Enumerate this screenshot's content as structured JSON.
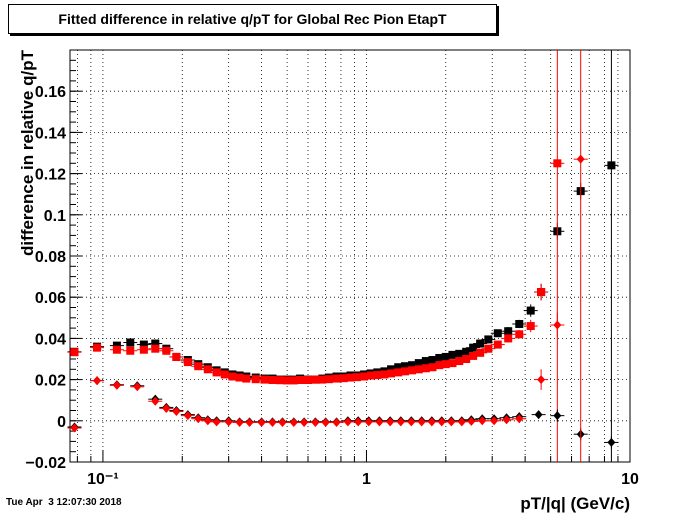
{
  "chart_data": {
    "type": "scatter",
    "title": "Fitted difference in relative q/pT for Global Rec Pion EtapT",
    "xlabel": "pT/|q| (GeV/c)",
    "ylabel": "difference in relative q/pT",
    "xscale": "log",
    "xlim": [
      0.075,
      10
    ],
    "ylim": [
      -0.02,
      0.18
    ],
    "grid": true,
    "x_ticks": [
      {
        "label": "10⁻¹",
        "value": 0.1
      },
      {
        "label": "1",
        "value": 1
      },
      {
        "label": "10",
        "value": 10
      }
    ],
    "y_ticks": [
      {
        "label": "−0.02",
        "value": -0.02
      },
      {
        "label": "0",
        "value": 0
      },
      {
        "label": "0.02",
        "value": 0.02
      },
      {
        "label": "0.04",
        "value": 0.04
      },
      {
        "label": "0.06",
        "value": 0.06
      },
      {
        "label": "0.08",
        "value": 0.08
      },
      {
        "label": "0.1",
        "value": 0.1
      },
      {
        "label": "0.12",
        "value": 0.12
      },
      {
        "label": "0.14",
        "value": 0.14
      },
      {
        "label": "0.16",
        "value": 0.16
      }
    ],
    "series": [
      {
        "marker": "square",
        "color": "#000000",
        "x": [
          0.078,
          0.095,
          0.113,
          0.127,
          0.143,
          0.158,
          0.174,
          0.19,
          0.21,
          0.23,
          0.25,
          0.27,
          0.29,
          0.31,
          0.33,
          0.35,
          0.38,
          0.41,
          0.44,
          0.47,
          0.5,
          0.53,
          0.56,
          0.6,
          0.64,
          0.68,
          0.72,
          0.77,
          0.82,
          0.87,
          0.92,
          0.98,
          1.04,
          1.1,
          1.17,
          1.24,
          1.32,
          1.4,
          1.49,
          1.58,
          1.68,
          1.78,
          1.89,
          2.0,
          2.12,
          2.25,
          2.39,
          2.54,
          2.7,
          2.9,
          3.15,
          3.45,
          3.8,
          4.2,
          4.6,
          5.3,
          6.5,
          8.5
        ],
        "y": [
          0.0335,
          0.036,
          0.0365,
          0.038,
          0.037,
          0.0375,
          0.035,
          0.031,
          0.0295,
          0.0275,
          0.026,
          0.0245,
          0.0235,
          0.0225,
          0.022,
          0.0215,
          0.021,
          0.0205,
          0.0205,
          0.02,
          0.02,
          0.02,
          0.0205,
          0.02,
          0.02,
          0.0205,
          0.021,
          0.0215,
          0.0215,
          0.022,
          0.022,
          0.0225,
          0.023,
          0.0235,
          0.024,
          0.025,
          0.026,
          0.0265,
          0.027,
          0.028,
          0.029,
          0.0295,
          0.0305,
          0.031,
          0.032,
          0.0325,
          0.0335,
          0.0355,
          0.0375,
          0.0395,
          0.0425,
          0.0435,
          0.047,
          0.0535,
          0.0625,
          0.092,
          0.1115,
          0.124
        ],
        "yerr": [
          0.001,
          0.001,
          0.001,
          0.001,
          0.001,
          0.001,
          0.0008,
          0.0006,
          0.0006,
          0.0005,
          0.0005,
          0.0005,
          0.0005,
          0.0005,
          0.0005,
          0.0005,
          0.0005,
          0.0005,
          0.0005,
          0.0005,
          0.0005,
          0.0005,
          0.0005,
          0.0005,
          0.0005,
          0.0005,
          0.0005,
          0.0005,
          0.0005,
          0.0005,
          0.0005,
          0.0005,
          0.0005,
          0.0006,
          0.0006,
          0.0006,
          0.0006,
          0.0006,
          0.0007,
          0.0007,
          0.0007,
          0.0008,
          0.0008,
          0.0008,
          0.0009,
          0.001,
          0.001,
          0.001,
          0.0012,
          0.0013,
          0.0015,
          0.002,
          0.002,
          0.003,
          0.004,
          0.004,
          0.004,
          0.004
        ]
      },
      {
        "marker": "square",
        "color": "#ff0000",
        "x": [
          0.078,
          0.095,
          0.113,
          0.127,
          0.143,
          0.158,
          0.174,
          0.19,
          0.21,
          0.23,
          0.25,
          0.27,
          0.29,
          0.31,
          0.33,
          0.35,
          0.38,
          0.41,
          0.44,
          0.47,
          0.5,
          0.53,
          0.56,
          0.6,
          0.64,
          0.68,
          0.72,
          0.77,
          0.82,
          0.87,
          0.92,
          0.98,
          1.04,
          1.1,
          1.17,
          1.24,
          1.32,
          1.4,
          1.49,
          1.58,
          1.68,
          1.78,
          1.89,
          2.0,
          2.12,
          2.25,
          2.39,
          2.54,
          2.7,
          2.9,
          3.15,
          3.45,
          3.8,
          4.2,
          4.6,
          5.3
        ],
        "y": [
          0.0333,
          0.0355,
          0.0345,
          0.034,
          0.0345,
          0.035,
          0.034,
          0.031,
          0.0285,
          0.0265,
          0.025,
          0.0235,
          0.0225,
          0.0215,
          0.021,
          0.0205,
          0.0202,
          0.02,
          0.0198,
          0.0197,
          0.0196,
          0.0196,
          0.0198,
          0.0198,
          0.02,
          0.02,
          0.0202,
          0.0205,
          0.0207,
          0.021,
          0.0212,
          0.0215,
          0.022,
          0.0222,
          0.0225,
          0.023,
          0.0235,
          0.024,
          0.0245,
          0.025,
          0.0255,
          0.026,
          0.027,
          0.0275,
          0.028,
          0.029,
          0.03,
          0.0315,
          0.033,
          0.035,
          0.037,
          0.04,
          0.042,
          0.046,
          0.0625,
          0.125
        ],
        "yerr": [
          0.001,
          0.001,
          0.001,
          0.001,
          0.001,
          0.001,
          0.0008,
          0.0006,
          0.0006,
          0.0005,
          0.0005,
          0.0005,
          0.0005,
          0.0005,
          0.0005,
          0.0005,
          0.0005,
          0.0005,
          0.0005,
          0.0005,
          0.0005,
          0.0005,
          0.0005,
          0.0005,
          0.0005,
          0.0005,
          0.0005,
          0.0005,
          0.0005,
          0.0005,
          0.0005,
          0.0005,
          0.0005,
          0.0006,
          0.0006,
          0.0006,
          0.0006,
          0.0006,
          0.0007,
          0.0007,
          0.0007,
          0.0008,
          0.0008,
          0.0008,
          0.0009,
          0.001,
          0.001,
          0.001,
          0.0012,
          0.0013,
          0.0015,
          0.002,
          0.002,
          0.003,
          0.004,
          0.006
        ]
      },
      {
        "marker": "diamond",
        "color": "#000000",
        "x": [
          0.078,
          0.095,
          0.113,
          0.135,
          0.158,
          0.174,
          0.19,
          0.21,
          0.23,
          0.25,
          0.27,
          0.3,
          0.33,
          0.36,
          0.4,
          0.44,
          0.48,
          0.53,
          0.58,
          0.64,
          0.7,
          0.77,
          0.85,
          0.93,
          1.02,
          1.12,
          1.23,
          1.35,
          1.48,
          1.62,
          1.77,
          1.93,
          2.1,
          2.3,
          2.5,
          2.75,
          3.05,
          3.4,
          3.8,
          4.5,
          5.3,
          6.5,
          8.5
        ],
        "y": [
          -0.003,
          0.0195,
          0.0175,
          0.017,
          0.0105,
          0.0065,
          0.005,
          0.003,
          0.0015,
          0.0005,
          0.0,
          0.0,
          -0.0005,
          -0.0005,
          -0.0005,
          -0.0005,
          -0.0005,
          -0.0005,
          -0.0005,
          -0.0005,
          -0.0005,
          -0.0005,
          0.0,
          0.0,
          0.0,
          0.0,
          0.0,
          0.0,
          0.0,
          0.0,
          0.0,
          0.0,
          0.0,
          0.0,
          0.0005,
          0.001,
          0.001,
          0.0015,
          0.002,
          0.003,
          0.0025,
          -0.0065,
          -0.0105
        ],
        "yerr": [
          0.001,
          0.001,
          0.001,
          0.001,
          0.0008,
          0.0006,
          0.0005,
          0.0005,
          0.0005,
          0.0005,
          0.0005,
          0.0005,
          0.0005,
          0.0005,
          0.0005,
          0.0005,
          0.0005,
          0.0005,
          0.0005,
          0.0005,
          0.0005,
          0.0005,
          0.0005,
          0.0005,
          0.0005,
          0.0005,
          0.0005,
          0.0005,
          0.0005,
          0.0005,
          0.0005,
          0.0005,
          0.0006,
          0.0006,
          0.0007,
          0.0008,
          0.001,
          0.0015,
          0.002,
          0.002,
          0.003,
          0.003,
          0.003
        ]
      },
      {
        "marker": "diamond",
        "color": "#ff0000",
        "x": [
          0.078,
          0.095,
          0.113,
          0.135,
          0.158,
          0.174,
          0.19,
          0.21,
          0.23,
          0.25,
          0.27,
          0.3,
          0.33,
          0.36,
          0.4,
          0.44,
          0.48,
          0.53,
          0.58,
          0.64,
          0.7,
          0.77,
          0.85,
          0.93,
          1.02,
          1.12,
          1.23,
          1.35,
          1.48,
          1.62,
          1.77,
          1.93,
          2.1,
          2.3,
          2.5,
          2.75,
          3.05,
          3.4,
          3.8,
          4.6,
          5.3,
          6.5
        ],
        "y": [
          -0.0035,
          0.0195,
          0.0172,
          0.0165,
          0.0095,
          0.006,
          0.0045,
          0.0025,
          0.001,
          0.0,
          -0.0005,
          -0.0005,
          -0.0008,
          -0.0008,
          -0.0008,
          -0.0008,
          -0.0008,
          -0.0008,
          -0.0008,
          -0.0008,
          -0.0008,
          -0.0008,
          -0.0005,
          -0.0005,
          -0.0005,
          -0.0005,
          -0.0005,
          -0.0005,
          -0.0005,
          -0.0005,
          -0.0005,
          -0.0005,
          -0.0005,
          -0.0005,
          -0.0003,
          0.0,
          0.0,
          0.0005,
          0.001,
          0.02,
          0.0465,
          0.127
        ],
        "yerr": [
          0.001,
          0.001,
          0.001,
          0.001,
          0.0008,
          0.0006,
          0.0005,
          0.0005,
          0.0005,
          0.0005,
          0.0005,
          0.0005,
          0.0005,
          0.0005,
          0.0005,
          0.0005,
          0.0005,
          0.0005,
          0.0005,
          0.0005,
          0.0005,
          0.0005,
          0.0005,
          0.0005,
          0.0005,
          0.0005,
          0.0005,
          0.0005,
          0.0005,
          0.0005,
          0.0005,
          0.0005,
          0.0006,
          0.0006,
          0.0007,
          0.0008,
          0.001,
          0.0015,
          0.002,
          0.005,
          0.006,
          0.004
        ]
      }
    ],
    "timestamp": "Tue Apr  3 12:07:30 2018"
  }
}
